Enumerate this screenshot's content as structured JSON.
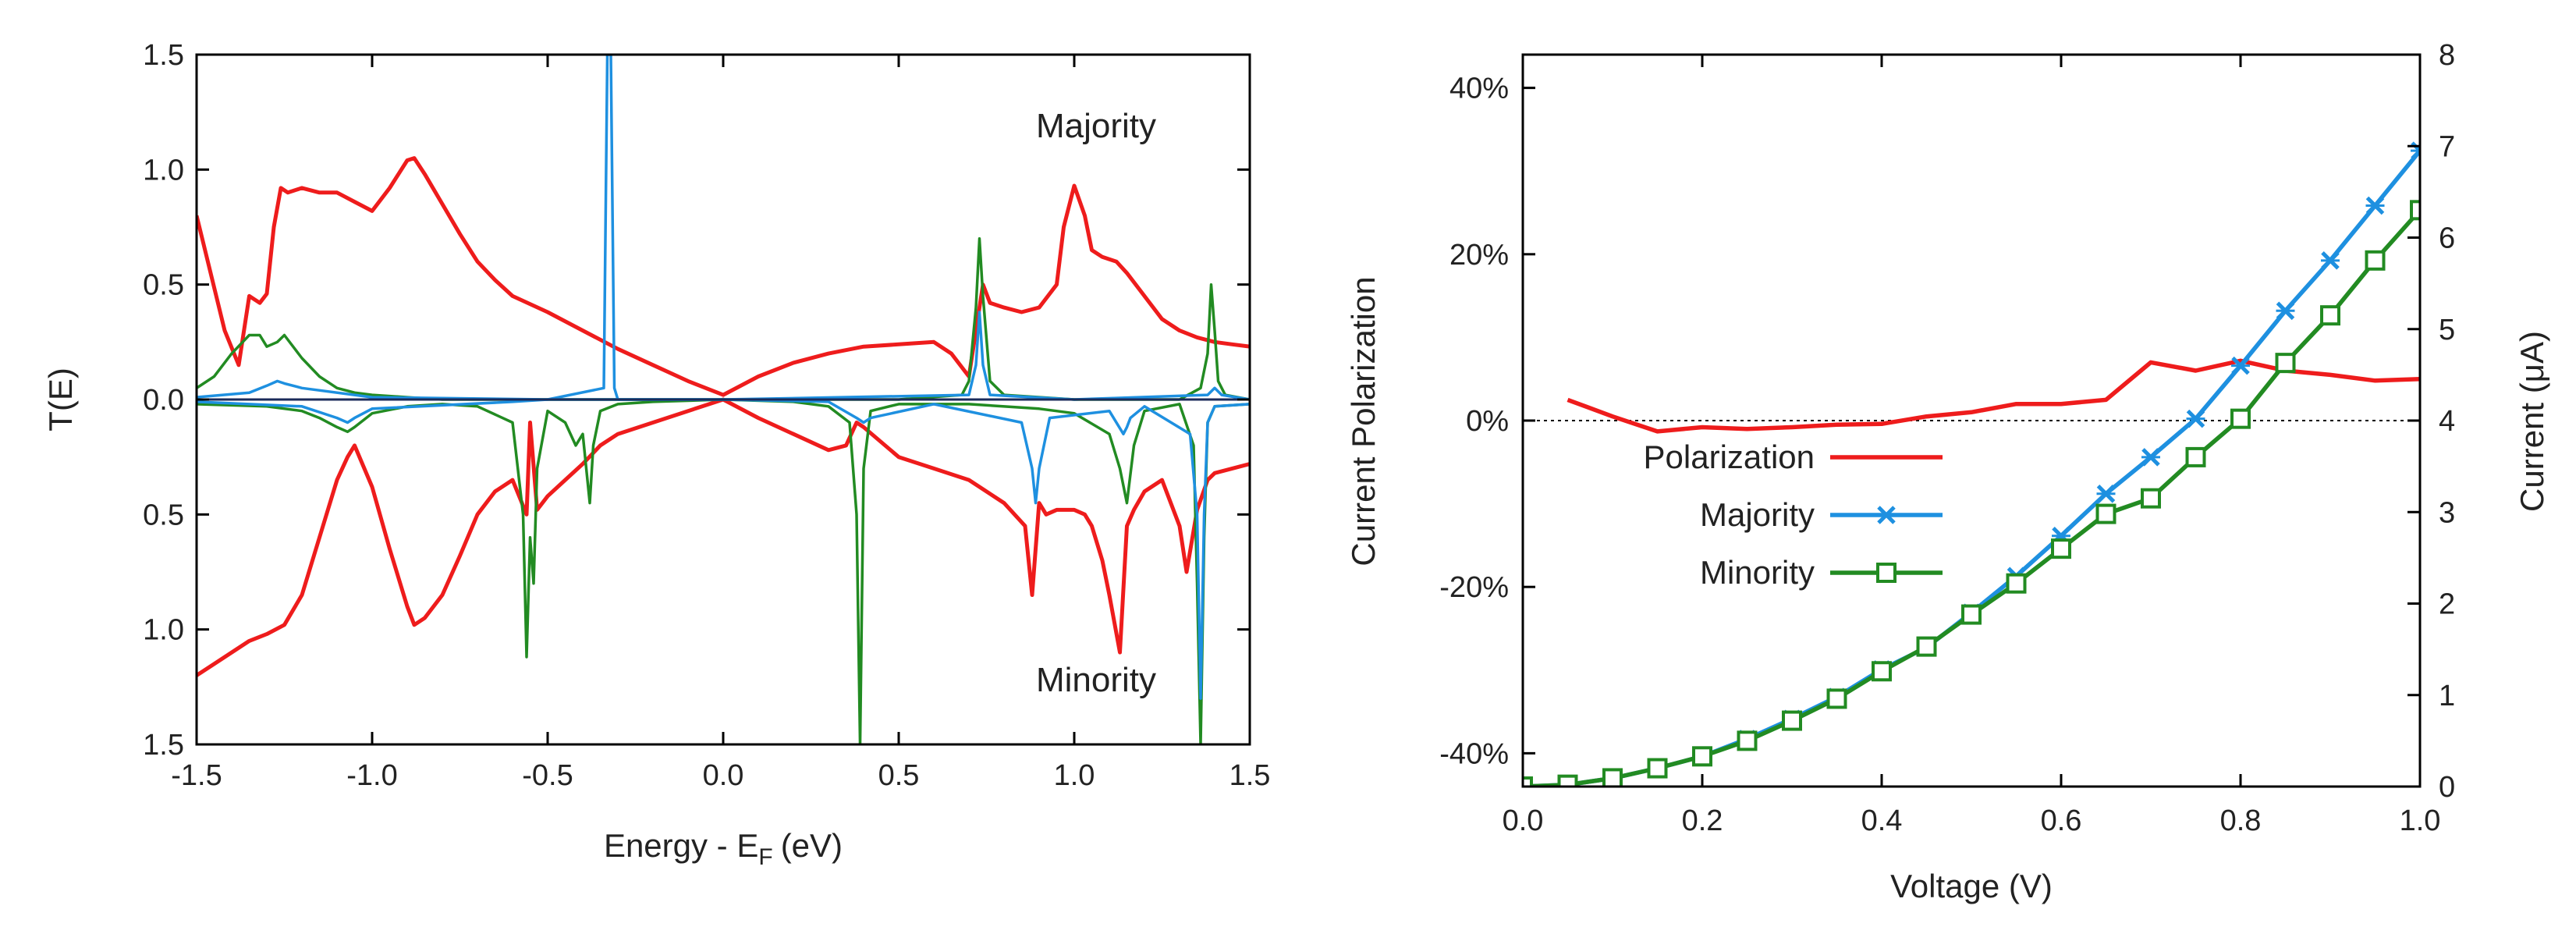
{
  "chart_data": [
    {
      "type": "line",
      "title": "",
      "xlabel_main": "Energy - E",
      "xlabel_sub": "F",
      "xlabel_unit": "(eV)",
      "ylabel": "T(E)",
      "xlim": [
        -1.5,
        1.5
      ],
      "ylim": [
        -1.5,
        1.5
      ],
      "xticks": [
        -1.5,
        -1.0,
        -0.5,
        0.0,
        0.5,
        1.0,
        1.5
      ],
      "xtick_labels": [
        "-1.5",
        "-1.0",
        "-0.5",
        "0.0",
        "0.5",
        "1.0",
        "1.5"
      ],
      "yticks": [
        1.5,
        1.0,
        0.5,
        0.0,
        -0.5,
        -1.0,
        -1.5
      ],
      "ytick_labels": [
        "1.5",
        "1.0",
        "0.5",
        "0.0",
        "0.5",
        "1.0",
        "1.5"
      ],
      "annotations": [
        "Majority",
        "Minority"
      ],
      "colors": {
        "red": "#ee1c1c",
        "green": "#228b22",
        "blue": "#1e90e0",
        "navy": "#1a2a5a"
      },
      "series": [
        {
          "name": "red-majority",
          "color": "#ee1c1c",
          "x": [
            -1.5,
            -1.42,
            -1.38,
            -1.35,
            -1.32,
            -1.3,
            -1.28,
            -1.26,
            -1.24,
            -1.2,
            -1.15,
            -1.1,
            -1.05,
            -1.0,
            -0.95,
            -0.9,
            -0.88,
            -0.85,
            -0.8,
            -0.75,
            -0.7,
            -0.65,
            -0.6,
            -0.5,
            -0.4,
            -0.3,
            -0.2,
            -0.1,
            0.0,
            0.1,
            0.2,
            0.3,
            0.4,
            0.5,
            0.6,
            0.65,
            0.7,
            0.72,
            0.74,
            0.76,
            0.8,
            0.85,
            0.9,
            0.95,
            0.97,
            1.0,
            1.03,
            1.05,
            1.08,
            1.12,
            1.15,
            1.2,
            1.25,
            1.3,
            1.35,
            1.4,
            1.45,
            1.5
          ],
          "y": [
            0.8,
            0.3,
            0.15,
            0.45,
            0.42,
            0.46,
            0.75,
            0.92,
            0.9,
            0.92,
            0.9,
            0.9,
            0.86,
            0.82,
            0.92,
            1.04,
            1.05,
            0.98,
            0.85,
            0.72,
            0.6,
            0.52,
            0.45,
            0.38,
            0.3,
            0.22,
            0.15,
            0.08,
            0.02,
            0.1,
            0.16,
            0.2,
            0.23,
            0.24,
            0.25,
            0.2,
            0.1,
            0.3,
            0.5,
            0.42,
            0.4,
            0.38,
            0.4,
            0.5,
            0.75,
            0.93,
            0.8,
            0.65,
            0.62,
            0.6,
            0.55,
            0.45,
            0.35,
            0.3,
            0.27,
            0.25,
            0.24,
            0.23
          ]
        },
        {
          "name": "red-minority",
          "color": "#ee1c1c",
          "x": [
            -1.5,
            -1.45,
            -1.4,
            -1.35,
            -1.3,
            -1.25,
            -1.2,
            -1.15,
            -1.1,
            -1.07,
            -1.05,
            -1.0,
            -0.95,
            -0.9,
            -0.88,
            -0.85,
            -0.8,
            -0.75,
            -0.7,
            -0.65,
            -0.6,
            -0.56,
            -0.55,
            -0.53,
            -0.5,
            -0.45,
            -0.4,
            -0.35,
            -0.3,
            -0.2,
            -0.1,
            0.0,
            0.1,
            0.2,
            0.3,
            0.35,
            0.38,
            0.4,
            0.5,
            0.6,
            0.7,
            0.8,
            0.86,
            0.88,
            0.9,
            0.92,
            0.95,
            1.0,
            1.03,
            1.05,
            1.08,
            1.1,
            1.13,
            1.15,
            1.17,
            1.2,
            1.25,
            1.3,
            1.32,
            1.35,
            1.38,
            1.4,
            1.45,
            1.5
          ],
          "y": [
            -1.2,
            -1.15,
            -1.1,
            -1.05,
            -1.02,
            -0.98,
            -0.85,
            -0.6,
            -0.35,
            -0.25,
            -0.2,
            -0.38,
            -0.65,
            -0.9,
            -0.98,
            -0.95,
            -0.85,
            -0.68,
            -0.5,
            -0.4,
            -0.35,
            -0.5,
            -0.1,
            -0.48,
            -0.42,
            -0.35,
            -0.28,
            -0.2,
            -0.15,
            -0.1,
            -0.05,
            0.0,
            -0.08,
            -0.15,
            -0.22,
            -0.2,
            -0.1,
            -0.12,
            -0.25,
            -0.3,
            -0.35,
            -0.45,
            -0.55,
            -0.85,
            -0.45,
            -0.5,
            -0.48,
            -0.48,
            -0.5,
            -0.55,
            -0.7,
            -0.85,
            -1.1,
            -0.55,
            -0.48,
            -0.4,
            -0.35,
            -0.55,
            -0.75,
            -0.48,
            -0.35,
            -0.32,
            -0.3,
            -0.28
          ]
        },
        {
          "name": "green-majority",
          "color": "#228b22",
          "x": [
            -1.5,
            -1.45,
            -1.4,
            -1.35,
            -1.32,
            -1.3,
            -1.27,
            -1.25,
            -1.22,
            -1.2,
            -1.15,
            -1.1,
            -1.05,
            -1.0,
            -0.9,
            -0.8,
            -0.5,
            0.0,
            0.5,
            0.68,
            0.7,
            0.72,
            0.73,
            0.74,
            0.76,
            0.8,
            1.0,
            1.3,
            1.36,
            1.38,
            1.39,
            1.4,
            1.41,
            1.43,
            1.5
          ],
          "y": [
            0.05,
            0.1,
            0.2,
            0.28,
            0.28,
            0.23,
            0.25,
            0.28,
            0.22,
            0.18,
            0.1,
            0.05,
            0.03,
            0.02,
            0.01,
            0.0,
            0.0,
            0.0,
            0.0,
            0.02,
            0.08,
            0.4,
            0.7,
            0.45,
            0.08,
            0.02,
            0.0,
            0.0,
            0.05,
            0.2,
            0.5,
            0.3,
            0.08,
            0.02,
            0.0
          ]
        },
        {
          "name": "green-minority",
          "color": "#228b22",
          "x": [
            -1.5,
            -1.3,
            -1.2,
            -1.15,
            -1.1,
            -1.07,
            -1.05,
            -1.0,
            -0.9,
            -0.8,
            -0.7,
            -0.6,
            -0.57,
            -0.56,
            -0.55,
            -0.54,
            -0.53,
            -0.5,
            -0.45,
            -0.42,
            -0.4,
            -0.39,
            -0.38,
            -0.37,
            -0.35,
            -0.3,
            -0.2,
            0.0,
            0.2,
            0.3,
            0.36,
            0.38,
            0.39,
            0.4,
            0.42,
            0.5,
            0.7,
            0.9,
            1.0,
            1.1,
            1.13,
            1.15,
            1.17,
            1.2,
            1.3,
            1.34,
            1.35,
            1.36,
            1.37,
            1.38,
            1.4,
            1.5
          ],
          "y": [
            -0.02,
            -0.03,
            -0.05,
            -0.08,
            -0.12,
            -0.14,
            -0.12,
            -0.06,
            -0.03,
            -0.02,
            -0.03,
            -0.1,
            -0.5,
            -1.12,
            -0.6,
            -0.8,
            -0.3,
            -0.05,
            -0.1,
            -0.2,
            -0.15,
            -0.3,
            -0.45,
            -0.2,
            -0.05,
            -0.02,
            -0.01,
            0.0,
            -0.01,
            -0.03,
            -0.1,
            -0.5,
            -1.5,
            -0.3,
            -0.05,
            -0.02,
            -0.02,
            -0.04,
            -0.06,
            -0.15,
            -0.3,
            -0.45,
            -0.2,
            -0.05,
            -0.02,
            -0.2,
            -0.8,
            -1.5,
            -0.6,
            -0.1,
            -0.03,
            -0.02
          ]
        },
        {
          "name": "blue-majority",
          "color": "#1e90e0",
          "x": [
            -1.5,
            -1.35,
            -1.3,
            -1.27,
            -1.25,
            -1.2,
            -1.0,
            -0.5,
            -0.34,
            -0.33,
            -0.32,
            -0.31,
            -0.3,
            0.0,
            0.7,
            0.72,
            0.73,
            0.74,
            0.76,
            1.0,
            1.38,
            1.4,
            1.42,
            1.5
          ],
          "y": [
            0.01,
            0.03,
            0.06,
            0.08,
            0.07,
            0.05,
            0.01,
            0.0,
            0.05,
            1.5,
            1.5,
            0.05,
            0.0,
            0.0,
            0.02,
            0.15,
            0.38,
            0.15,
            0.02,
            0.0,
            0.02,
            0.05,
            0.02,
            0.0
          ]
        },
        {
          "name": "blue-minority",
          "color": "#1e90e0",
          "x": [
            -1.5,
            -1.2,
            -1.1,
            -1.07,
            -1.05,
            -1.0,
            -0.6,
            -0.5,
            0.0,
            0.3,
            0.38,
            0.4,
            0.42,
            0.6,
            0.85,
            0.88,
            0.89,
            0.9,
            0.93,
            1.1,
            1.14,
            1.15,
            1.16,
            1.2,
            1.33,
            1.35,
            1.36,
            1.37,
            1.38,
            1.4,
            1.5
          ],
          "y": [
            -0.01,
            -0.03,
            -0.08,
            -0.1,
            -0.08,
            -0.04,
            -0.01,
            0.0,
            0.0,
            -0.01,
            -0.08,
            -0.1,
            -0.08,
            -0.02,
            -0.1,
            -0.3,
            -0.45,
            -0.3,
            -0.08,
            -0.05,
            -0.15,
            -0.12,
            -0.08,
            -0.03,
            -0.15,
            -0.5,
            -1.3,
            -0.5,
            -0.1,
            -0.03,
            -0.02
          ]
        }
      ]
    },
    {
      "type": "line",
      "title": "",
      "xlabel": "Voltage (V)",
      "ylabel_left": "Current Polarization",
      "ylabel_right": "Current (μA)",
      "xlim": [
        0.0,
        1.0
      ],
      "ylim_left": [
        -44,
        44
      ],
      "ylim_right": [
        0,
        8
      ],
      "xticks": [
        0.0,
        0.2,
        0.4,
        0.6,
        0.8,
        1.0
      ],
      "xtick_labels": [
        "0.0",
        "0.2",
        "0.4",
        "0.6",
        "0.8",
        "1.0"
      ],
      "yticks_left": [
        40,
        20,
        0,
        -20,
        -40
      ],
      "ytick_labels_left": [
        "40%",
        "20%",
        "0%",
        "-20%",
        "-40%"
      ],
      "yticks_right": [
        8,
        7,
        6,
        5,
        4,
        3,
        2,
        1,
        0
      ],
      "ytick_labels_right": [
        "8",
        "7",
        "6",
        "5",
        "4",
        "3",
        "2",
        "1",
        "0"
      ],
      "legend": [
        "Polarization",
        "Majority",
        "Minority"
      ],
      "legend_position": "center-left",
      "series": [
        {
          "name": "Polarization",
          "axis": "left",
          "color": "#ee1c1c",
          "marker": "none",
          "x": [
            0.05,
            0.1,
            0.15,
            0.2,
            0.25,
            0.3,
            0.35,
            0.4,
            0.45,
            0.5,
            0.55,
            0.6,
            0.65,
            0.7,
            0.75,
            0.8,
            0.85,
            0.9,
            0.95,
            1.0
          ],
          "y": [
            2.5,
            0.5,
            -1.3,
            -0.8,
            -1.0,
            -0.8,
            -0.5,
            -0.4,
            0.5,
            1.0,
            2.0,
            2.0,
            2.5,
            7.0,
            6.0,
            7.2,
            6.0,
            5.5,
            4.8,
            5.0
          ]
        },
        {
          "name": "Majority",
          "axis": "right",
          "color": "#1e90e0",
          "marker": "x",
          "x": [
            0.0,
            0.05,
            0.1,
            0.15,
            0.2,
            0.25,
            0.3,
            0.35,
            0.4,
            0.45,
            0.5,
            0.55,
            0.6,
            0.65,
            0.7,
            0.75,
            0.8,
            0.85,
            0.9,
            0.95,
            1.0
          ],
          "y": [
            0.0,
            0.02,
            0.09,
            0.2,
            0.33,
            0.52,
            0.74,
            0.98,
            1.28,
            1.52,
            1.9,
            2.3,
            2.74,
            3.2,
            3.6,
            4.02,
            4.6,
            5.2,
            5.75,
            6.35,
            6.95
          ]
        },
        {
          "name": "Minority",
          "axis": "right",
          "color": "#228b22",
          "marker": "square",
          "x": [
            0.0,
            0.05,
            0.1,
            0.15,
            0.2,
            0.25,
            0.3,
            0.35,
            0.4,
            0.45,
            0.5,
            0.55,
            0.6,
            0.65,
            0.7,
            0.75,
            0.8,
            0.85,
            0.9,
            0.95,
            1.0
          ],
          "y": [
            0.0,
            0.02,
            0.09,
            0.2,
            0.33,
            0.5,
            0.72,
            0.96,
            1.26,
            1.53,
            1.88,
            2.22,
            2.6,
            2.98,
            3.15,
            3.6,
            4.02,
            4.63,
            5.15,
            5.75,
            6.3
          ]
        }
      ]
    }
  ]
}
